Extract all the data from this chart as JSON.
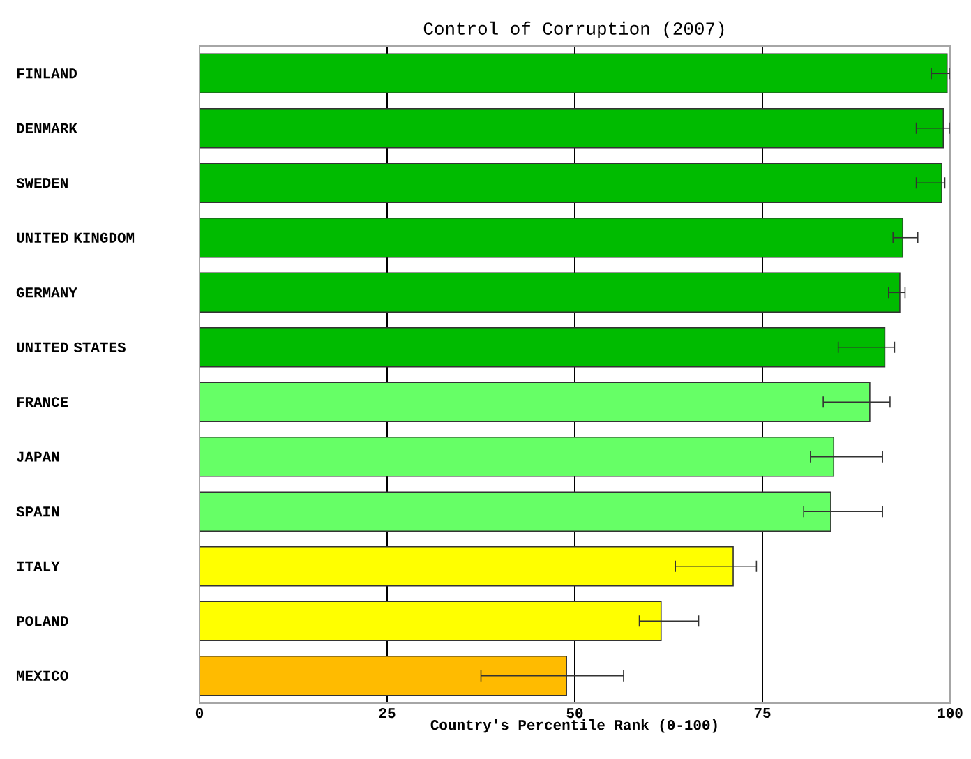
{
  "chart_data": {
    "type": "bar",
    "orientation": "horizontal",
    "title": "Control of Corruption (2007)",
    "xlabel": "Country's Percentile Rank (0-100)",
    "categories": [
      "FINLAND",
      "DENMARK",
      "SWEDEN",
      "UNITED KINGDOM",
      "GERMANY",
      "UNITED STATES",
      "FRANCE",
      "JAPAN",
      "SPAIN",
      "ITALY",
      "POLAND",
      "MEXICO"
    ],
    "values": [
      99.6,
      99.1,
      98.9,
      93.7,
      93.3,
      91.3,
      89.3,
      84.5,
      84.1,
      71.1,
      61.5,
      48.9
    ],
    "colors": [
      "#00bb00",
      "#00bb00",
      "#00bb00",
      "#00bb00",
      "#00bb00",
      "#00bb00",
      "#66ff66",
      "#66ff66",
      "#66ff66",
      "#ffff00",
      "#ffff00",
      "#ffbb00"
    ],
    "errors": [
      [
        97.5,
        100
      ],
      [
        95.5,
        100
      ],
      [
        95.5,
        99.3
      ],
      [
        92.4,
        95.7
      ],
      [
        91.8,
        94.0
      ],
      [
        85.1,
        92.6
      ],
      [
        83.1,
        92.0
      ],
      [
        81.4,
        91.0
      ],
      [
        80.5,
        91.0
      ],
      [
        63.4,
        74.2
      ],
      [
        58.6,
        66.5
      ],
      [
        37.5,
        56.5
      ]
    ],
    "xlim": [
      0,
      100
    ],
    "xticks": [
      0,
      25,
      50,
      75,
      100
    ],
    "grid": "x"
  }
}
